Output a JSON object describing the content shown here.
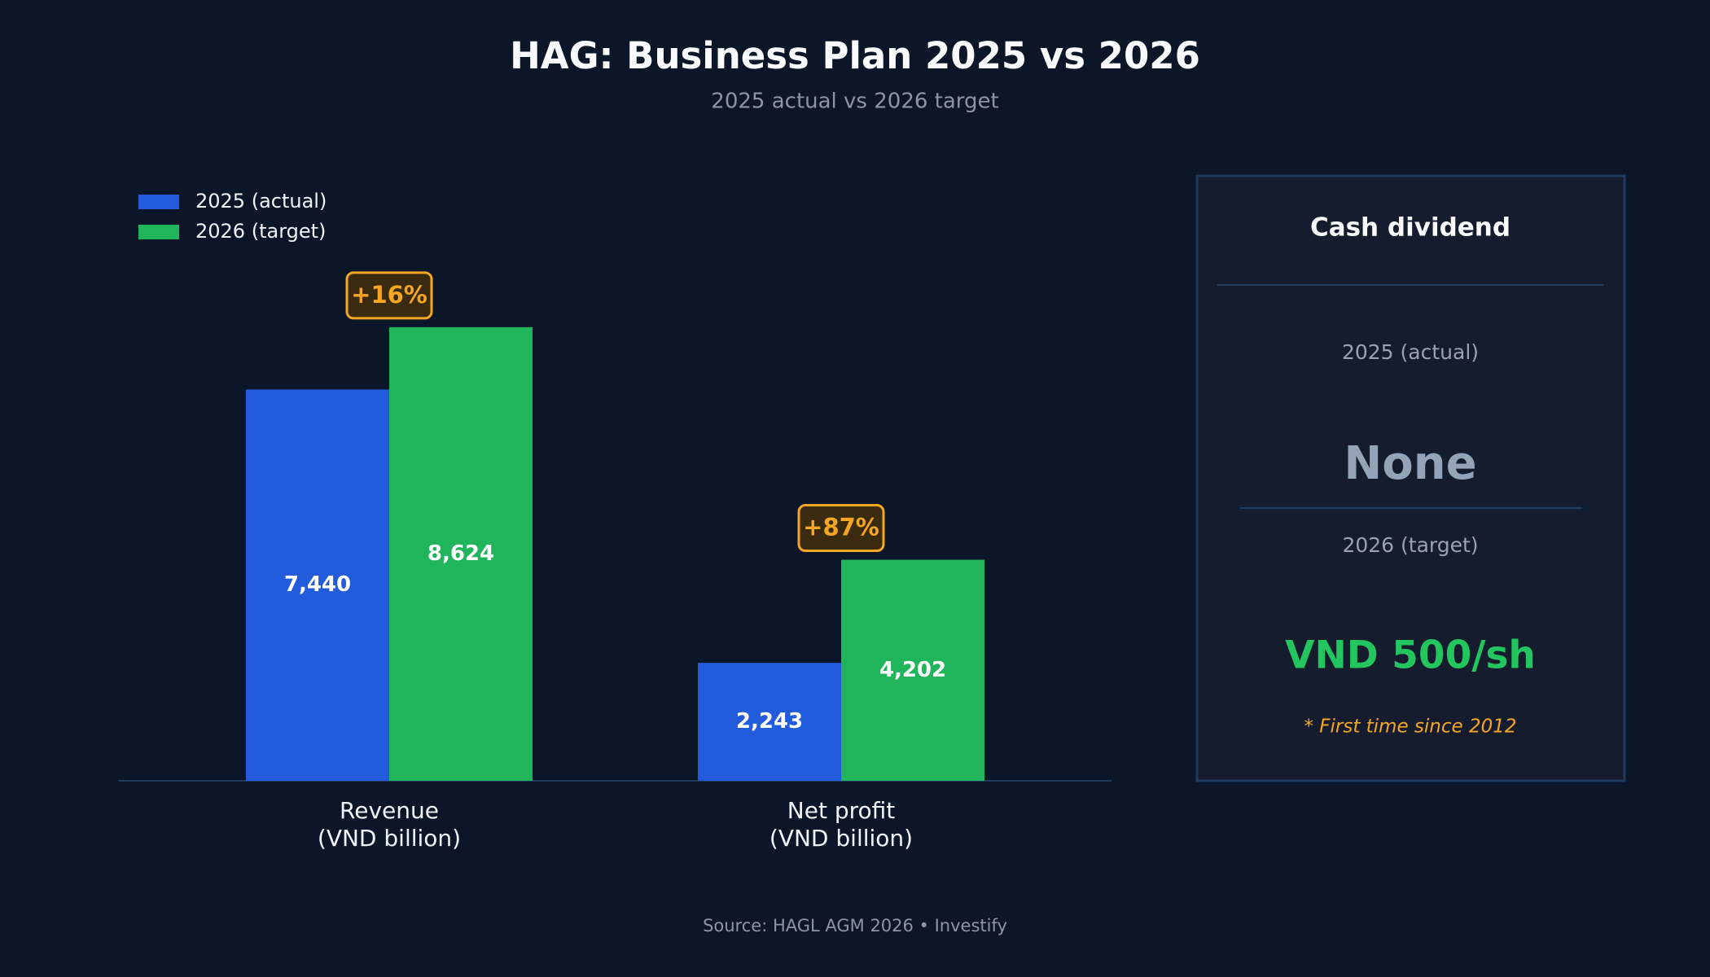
{
  "chart_data": {
    "type": "bar",
    "title": "HAG: Business Plan 2025 vs 2026",
    "subtitle": "2025 actual vs 2026 target",
    "categories": [
      "Revenue\n(VND billion)",
      "Net profit\n(VND billion)"
    ],
    "series": [
      {
        "name": "2025 (actual)",
        "color": "#225bdb",
        "values": [
          7440,
          2243
        ],
        "value_labels": [
          "7,440",
          "2,243"
        ]
      },
      {
        "name": "2026 (target)",
        "color": "#20b55a",
        "values": [
          8624,
          4202
        ],
        "value_labels": [
          "8,624",
          "4,202"
        ]
      }
    ],
    "change_labels": [
      "+16%",
      "+87%"
    ],
    "ylim": [
      0,
      10000
    ],
    "legend": "upper-left",
    "grid": false,
    "source": "Source: HAGL AGM 2026  •  Investify"
  },
  "dividend_panel": {
    "title": "Cash dividend",
    "items": [
      {
        "label": "2025 (actual)",
        "value": "None"
      },
      {
        "label": "2026 (target)",
        "value": "VND 500/sh"
      }
    ],
    "note": "* First time since 2012"
  }
}
